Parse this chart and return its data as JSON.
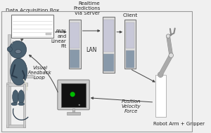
{
  "bg_color": "#f0f0f0",
  "border_color": "#999999",
  "labels": {
    "data_acq": "Data Acquisition Box",
    "ann": "ANN\nand\nLinear\nFit",
    "realtime": "Realtime\nPredictions\nVia Server",
    "client": "Client",
    "lan": "LAN",
    "visual": "Visual\nFeedback\nLoop",
    "pos_vel": "Position\nVelocity\nForce",
    "robot_arm": "Robot Arm + Gripper"
  },
  "arrow_color": "#444444",
  "monitor_fill": "#111111",
  "monitor_screen_dot": "#00bb00",
  "monkey_color": "#4a6070",
  "chair_color": "#cccccc",
  "box_fill": "#dedede",
  "box_edge": "#777777",
  "server_upper": "#c8c8d8",
  "server_lower": "#8899aa",
  "robot_color": "#c0c0c0",
  "text_color": "#222222",
  "font_size": 5.0,
  "white": "#ffffff"
}
